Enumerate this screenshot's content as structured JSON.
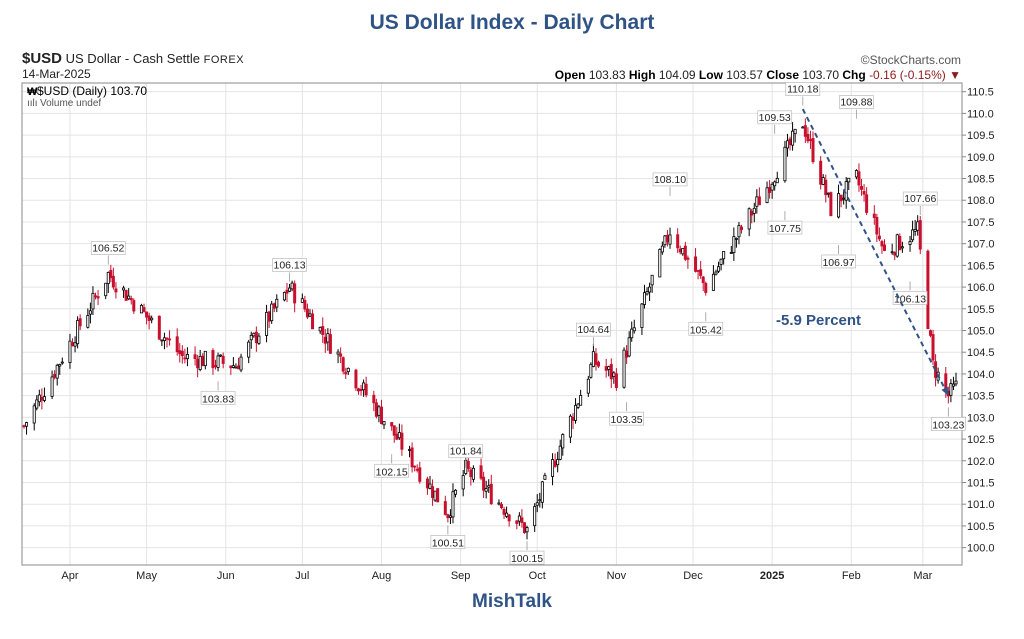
{
  "title": "US Dollar Index - Daily Chart",
  "header": {
    "symbol": "$USD",
    "name": "US Dollar - Cash Settle",
    "exchange": "FOREX",
    "date": "14-Mar-2025",
    "credit": "StockCharts.com",
    "open_label": "Open",
    "open": "103.83",
    "high_label": "High",
    "high": "104.09",
    "low_label": "Low",
    "low": "103.57",
    "close_label": "Close",
    "close": "103.70",
    "chg_label": "Chg",
    "chg": "-0.16 (-0.15%)"
  },
  "legend": {
    "price": "$USD (Daily) 103.70",
    "volume": "Volume undef"
  },
  "annotation": "-5.9 Percent",
  "footer": "MishTalk",
  "colors": {
    "up": "#000000",
    "down": "#c8102e",
    "title": "#2f5386",
    "arrow": "#2f5386",
    "grid": "#e4e4e4"
  },
  "chart_data": {
    "type": "candlestick",
    "y_axis_side": "right",
    "ylim": [
      99.6,
      110.7
    ],
    "yticks": [
      100.0,
      100.5,
      101.0,
      101.5,
      102.0,
      102.5,
      103.0,
      103.5,
      104.0,
      104.5,
      105.0,
      105.5,
      106.0,
      106.5,
      107.0,
      107.5,
      108.0,
      108.5,
      109.0,
      109.5,
      110.0,
      110.5
    ],
    "x_range": [
      "2024-03-14",
      "2025-03-14"
    ],
    "x_ticks": [
      {
        "date": "2024-04-01",
        "label": "Apr"
      },
      {
        "date": "2024-05-01",
        "label": "May"
      },
      {
        "date": "2024-06-01",
        "label": "Jun"
      },
      {
        "date": "2024-07-01",
        "label": "Jul"
      },
      {
        "date": "2024-08-01",
        "label": "Aug"
      },
      {
        "date": "2024-09-01",
        "label": "Sep"
      },
      {
        "date": "2024-10-01",
        "label": "Oct"
      },
      {
        "date": "2024-11-01",
        "label": "Nov"
      },
      {
        "date": "2024-12-01",
        "label": "Dec"
      },
      {
        "date": "2025-01-01",
        "label": "2025"
      },
      {
        "date": "2025-02-01",
        "label": "Feb"
      },
      {
        "date": "2025-03-01",
        "label": "Mar"
      }
    ],
    "key_closes": [
      {
        "date": "2024-03-14",
        "value": 102.8
      },
      {
        "date": "2024-04-16",
        "value": 106.3
      },
      {
        "date": "2024-05-15",
        "value": 104.4
      },
      {
        "date": "2024-06-05",
        "value": 104.2
      },
      {
        "date": "2024-06-26",
        "value": 106.0
      },
      {
        "date": "2024-07-18",
        "value": 104.2
      },
      {
        "date": "2024-08-05",
        "value": 102.7
      },
      {
        "date": "2024-08-27",
        "value": 100.8
      },
      {
        "date": "2024-09-03",
        "value": 101.8
      },
      {
        "date": "2024-09-27",
        "value": 100.4
      },
      {
        "date": "2024-10-23",
        "value": 104.3
      },
      {
        "date": "2024-11-01",
        "value": 103.9
      },
      {
        "date": "2024-11-22",
        "value": 107.3
      },
      {
        "date": "2024-12-06",
        "value": 106.0
      },
      {
        "date": "2024-12-31",
        "value": 108.4
      },
      {
        "date": "2025-01-13",
        "value": 109.8
      },
      {
        "date": "2025-01-24",
        "value": 107.8
      },
      {
        "date": "2025-02-03",
        "value": 108.5
      },
      {
        "date": "2025-02-14",
        "value": 106.8
      },
      {
        "date": "2025-02-27",
        "value": 107.3
      },
      {
        "date": "2025-03-05",
        "value": 104.2
      },
      {
        "date": "2025-03-11",
        "value": 103.5
      },
      {
        "date": "2025-03-14",
        "value": 103.7
      }
    ],
    "annotations": [
      {
        "date": "2024-04-16",
        "value": 106.52,
        "label": "106.52",
        "pos": "above"
      },
      {
        "date": "2024-05-29",
        "value": 103.83,
        "label": "103.83",
        "pos": "below"
      },
      {
        "date": "2024-06-26",
        "value": 106.13,
        "label": "106.13",
        "pos": "above"
      },
      {
        "date": "2024-08-05",
        "value": 102.15,
        "label": "102.15",
        "pos": "below"
      },
      {
        "date": "2024-08-27",
        "value": 100.51,
        "label": "100.51",
        "pos": "below"
      },
      {
        "date": "2024-09-03",
        "value": 101.84,
        "label": "101.84",
        "pos": "above"
      },
      {
        "date": "2024-09-27",
        "value": 100.15,
        "label": "100.15",
        "pos": "below"
      },
      {
        "date": "2024-10-23",
        "value": 104.64,
        "label": "104.64",
        "pos": "above"
      },
      {
        "date": "2024-11-05",
        "value": 103.35,
        "label": "103.35",
        "pos": "below"
      },
      {
        "date": "2024-11-22",
        "value": 108.1,
        "label": "108.10",
        "pos": "above"
      },
      {
        "date": "2024-12-06",
        "value": 105.42,
        "label": "105.42",
        "pos": "below"
      },
      {
        "date": "2025-01-02",
        "value": 109.53,
        "label": "109.53",
        "pos": "above"
      },
      {
        "date": "2025-01-06",
        "value": 107.75,
        "label": "107.75",
        "pos": "below"
      },
      {
        "date": "2025-01-13",
        "value": 110.18,
        "label": "110.18",
        "pos": "above"
      },
      {
        "date": "2025-01-27",
        "value": 106.97,
        "label": "106.97",
        "pos": "below"
      },
      {
        "date": "2025-02-03",
        "value": 109.88,
        "label": "109.88",
        "pos": "above"
      },
      {
        "date": "2025-02-24",
        "value": 106.13,
        "label": "106.13",
        "pos": "below"
      },
      {
        "date": "2025-02-28",
        "value": 107.66,
        "label": "107.66",
        "pos": "above"
      },
      {
        "date": "2025-03-11",
        "value": 103.23,
        "label": "103.23",
        "pos": "below"
      }
    ],
    "trend_arrow": {
      "from": {
        "date": "2025-01-13",
        "value": 110.1
      },
      "to": {
        "date": "2025-03-11",
        "value": 103.5
      }
    }
  }
}
